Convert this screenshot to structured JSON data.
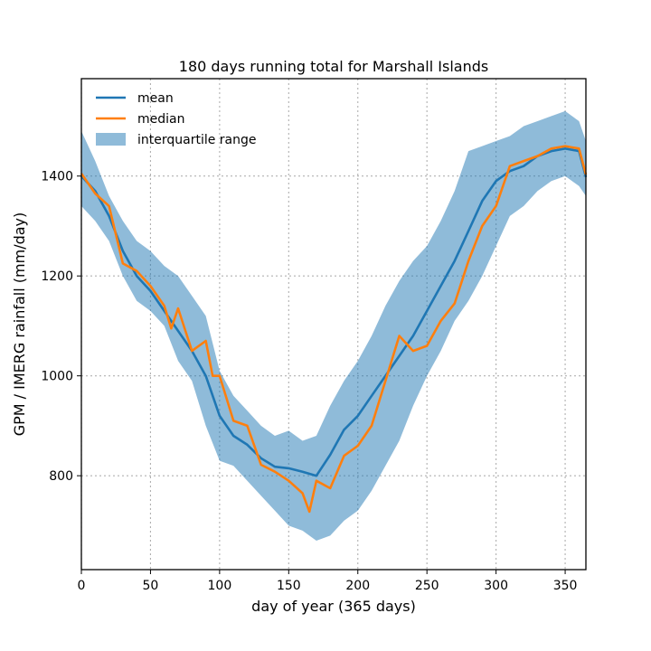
{
  "chart_data": {
    "type": "line",
    "title": "180 days running total for Marshall Islands",
    "xlabel": "day of year (365 days)",
    "ylabel": "GPM / IMERG rainfall (mm/day)",
    "xlim": [
      0,
      365
    ],
    "ylim": [
      612,
      1595
    ],
    "xticks": [
      0,
      50,
      100,
      150,
      200,
      250,
      300,
      350
    ],
    "yticks": [
      800,
      1000,
      1200,
      1400
    ],
    "grid": true,
    "legend_position": "top-left",
    "colors": {
      "mean": "#1f77b4",
      "median": "#ff7f0e",
      "iqr": "#1f77b4"
    },
    "series": [
      {
        "name": "mean",
        "x": [
          0,
          10,
          20,
          30,
          40,
          50,
          60,
          70,
          80,
          90,
          100,
          110,
          120,
          130,
          140,
          150,
          160,
          170,
          180,
          190,
          200,
          210,
          220,
          230,
          240,
          250,
          260,
          270,
          280,
          290,
          300,
          310,
          320,
          330,
          340,
          350,
          360,
          365
        ],
        "values": [
          1400,
          1370,
          1320,
          1250,
          1200,
          1170,
          1130,
          1090,
          1050,
          1000,
          920,
          880,
          862,
          835,
          818,
          815,
          808,
          800,
          842,
          892,
          920,
          960,
          1000,
          1040,
          1080,
          1130,
          1180,
          1230,
          1290,
          1350,
          1390,
          1410,
          1420,
          1440,
          1450,
          1455,
          1450,
          1398
        ]
      },
      {
        "name": "median",
        "x": [
          0,
          10,
          20,
          30,
          40,
          50,
          60,
          65,
          70,
          80,
          90,
          95,
          100,
          110,
          120,
          130,
          140,
          150,
          160,
          165,
          170,
          180,
          190,
          200,
          210,
          220,
          230,
          240,
          250,
          260,
          270,
          280,
          290,
          300,
          310,
          320,
          330,
          340,
          350,
          360,
          365
        ],
        "values": [
          1405,
          1365,
          1340,
          1225,
          1210,
          1180,
          1140,
          1095,
          1135,
          1050,
          1070,
          1000,
          1000,
          910,
          900,
          822,
          808,
          790,
          765,
          728,
          790,
          775,
          840,
          860,
          900,
          990,
          1080,
          1050,
          1060,
          1110,
          1145,
          1230,
          1300,
          1340,
          1420,
          1430,
          1440,
          1455,
          1460,
          1455,
          1403
        ]
      },
      {
        "name": "interquartile range",
        "x": [
          0,
          10,
          20,
          30,
          40,
          50,
          60,
          70,
          80,
          90,
          100,
          110,
          120,
          130,
          140,
          150,
          160,
          170,
          180,
          190,
          200,
          210,
          220,
          230,
          240,
          250,
          260,
          270,
          280,
          290,
          300,
          310,
          320,
          330,
          340,
          350,
          360,
          365
        ],
        "low": [
          1340,
          1310,
          1270,
          1200,
          1150,
          1130,
          1100,
          1030,
          990,
          900,
          830,
          820,
          790,
          760,
          730,
          700,
          690,
          670,
          680,
          710,
          730,
          770,
          820,
          870,
          940,
          1000,
          1050,
          1110,
          1150,
          1200,
          1260,
          1320,
          1340,
          1370,
          1390,
          1400,
          1380,
          1360
        ],
        "high": [
          1490,
          1430,
          1360,
          1310,
          1270,
          1250,
          1220,
          1200,
          1160,
          1120,
          1010,
          960,
          930,
          900,
          880,
          890,
          870,
          880,
          940,
          990,
          1030,
          1080,
          1140,
          1190,
          1230,
          1260,
          1310,
          1370,
          1450,
          1460,
          1470,
          1480,
          1500,
          1510,
          1520,
          1530,
          1510,
          1470
        ]
      }
    ]
  }
}
